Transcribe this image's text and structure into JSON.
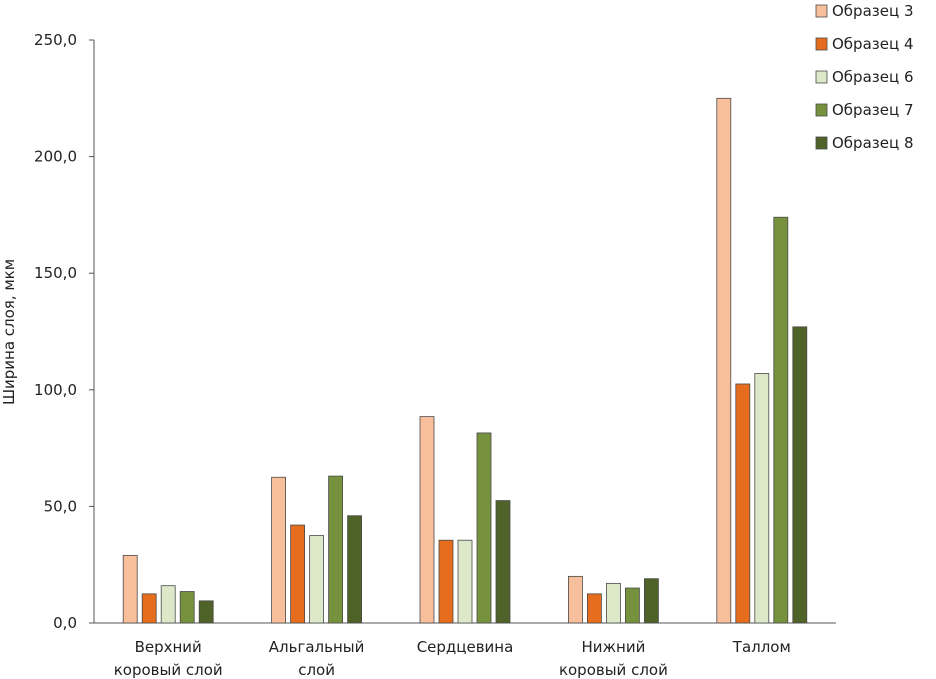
{
  "chart_data": {
    "type": "bar",
    "title": "",
    "xlabel": "",
    "ylabel": "Ширина слоя, мкм",
    "ylim": [
      0,
      250
    ],
    "yticks": [
      "0,0",
      "50,0",
      "100,0",
      "150,0",
      "200,0",
      "250,0"
    ],
    "ytick_values": [
      0,
      50,
      100,
      150,
      200,
      250
    ],
    "grid": false,
    "legend_position": "top-right",
    "categories": [
      [
        "Верхний",
        "коровый слой"
      ],
      [
        "Альгальный",
        "слой"
      ],
      [
        "Сердцевина"
      ],
      [
        "Нижний",
        "коровый слой"
      ],
      [
        "Таллом"
      ]
    ],
    "series": [
      {
        "name": "Образец 3",
        "color": "#f7bf9c",
        "values": [
          29,
          62.5,
          88.5,
          20,
          225
        ]
      },
      {
        "name": "Образец 4",
        "color": "#e56d1d",
        "values": [
          12.5,
          42,
          35.5,
          12.5,
          102.5
        ]
      },
      {
        "name": "Образец 6",
        "color": "#dde8c8",
        "values": [
          16,
          37.5,
          35.5,
          17,
          107
        ]
      },
      {
        "name": "Образец 7",
        "color": "#76923c",
        "values": [
          13.5,
          63,
          81.5,
          15,
          174
        ]
      },
      {
        "name": "Образец 8",
        "color": "#4f6228",
        "values": [
          9.5,
          46,
          52.5,
          19,
          127
        ]
      }
    ]
  }
}
